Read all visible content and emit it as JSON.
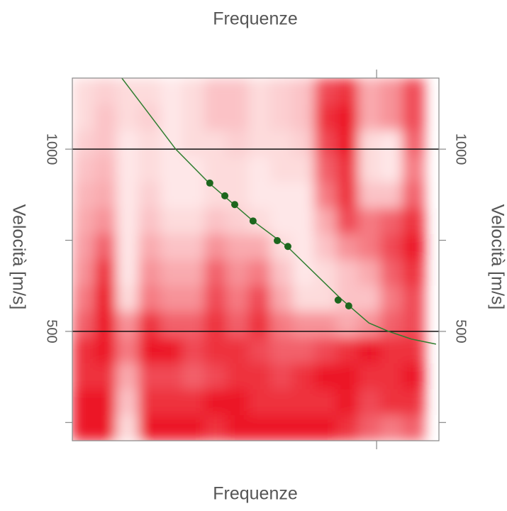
{
  "chart_data": {
    "type": "heatmap",
    "xlabel": "Frequenze",
    "ylabel": "Velocità [m/s]",
    "xlim": [
      0,
      100
    ],
    "ylim": [
      200,
      1195
    ],
    "yticks": [
      500,
      1000
    ],
    "yticks_minor": [
      250,
      750
    ],
    "xticks_minor": [
      83
    ],
    "hlines": [
      500,
      1000
    ],
    "colormap": [
      "#fff3f3",
      "#ea0010"
    ],
    "x_bins": [
      0,
      6,
      12,
      18,
      24,
      30,
      36,
      42,
      48,
      54,
      60,
      66,
      72,
      78,
      84,
      90,
      96
    ],
    "y_bins": [
      200,
      271,
      342,
      413,
      484,
      555,
      626,
      697,
      768,
      839,
      910,
      981,
      1052,
      1123,
      1195
    ],
    "z": [
      [
        0.9,
        0.9,
        0.1,
        0.9,
        0.9,
        0.9,
        0.8,
        0.9,
        0.9,
        0.9,
        0.9,
        0.9,
        0.8,
        0.6,
        0.5,
        0.6
      ],
      [
        0.9,
        0.9,
        0.2,
        0.8,
        0.8,
        0.8,
        0.9,
        0.9,
        0.8,
        0.8,
        0.8,
        0.8,
        0.9,
        0.7,
        0.8,
        0.8
      ],
      [
        0.8,
        0.8,
        0.3,
        0.7,
        0.7,
        0.6,
        0.7,
        0.8,
        0.8,
        0.7,
        0.8,
        0.9,
        0.9,
        0.8,
        0.8,
        0.9
      ],
      [
        0.8,
        0.9,
        0.5,
        0.9,
        0.9,
        0.7,
        0.8,
        0.8,
        0.7,
        0.6,
        0.6,
        0.7,
        0.8,
        0.9,
        0.8,
        0.8
      ],
      [
        0.6,
        0.9,
        0.4,
        0.8,
        0.6,
        0.6,
        0.8,
        0.6,
        0.8,
        0.5,
        0.4,
        0.4,
        0.3,
        0.4,
        0.6,
        0.7
      ],
      [
        0.5,
        0.9,
        0.1,
        0.5,
        0.4,
        0.4,
        0.7,
        0.5,
        0.7,
        0.3,
        0.1,
        0.1,
        0.2,
        0.2,
        0.5,
        0.7
      ],
      [
        0.4,
        0.8,
        0.05,
        0.4,
        0.3,
        0.3,
        0.6,
        0.4,
        0.5,
        0.2,
        0.05,
        0.1,
        0.2,
        0.3,
        0.6,
        0.8
      ],
      [
        0.35,
        0.6,
        0.05,
        0.3,
        0.2,
        0.2,
        0.4,
        0.3,
        0.3,
        0.1,
        0.05,
        0.2,
        0.4,
        0.5,
        0.7,
        0.9
      ],
      [
        0.3,
        0.4,
        0.05,
        0.2,
        0.1,
        0.1,
        0.2,
        0.15,
        0.1,
        0.05,
        0.05,
        0.3,
        0.7,
        0.5,
        0.6,
        0.8
      ],
      [
        0.25,
        0.3,
        0.05,
        0.15,
        0.05,
        0.05,
        0.1,
        0.1,
        0.05,
        0.05,
        0.05,
        0.5,
        0.8,
        0.2,
        0.2,
        0.6
      ],
      [
        0.2,
        0.25,
        0.05,
        0.1,
        0.05,
        0.05,
        0.1,
        0.1,
        0.05,
        0.1,
        0.1,
        0.6,
        0.8,
        0.1,
        0.05,
        0.5
      ],
      [
        0.15,
        0.2,
        0.05,
        0.1,
        0.05,
        0.1,
        0.1,
        0.15,
        0.1,
        0.1,
        0.15,
        0.7,
        0.9,
        0.1,
        0.05,
        0.6
      ],
      [
        0.1,
        0.2,
        0.1,
        0.15,
        0.05,
        0.1,
        0.2,
        0.2,
        0.1,
        0.15,
        0.2,
        0.8,
        0.9,
        0.3,
        0.4,
        0.7
      ],
      [
        0.1,
        0.15,
        0.1,
        0.1,
        0.05,
        0.1,
        0.2,
        0.2,
        0.1,
        0.15,
        0.2,
        0.7,
        0.8,
        0.3,
        0.4,
        0.7
      ]
    ],
    "curve": {
      "color": "#2f7d2f",
      "x": [
        13.5,
        20.9,
        28.2,
        37.3,
        49.3,
        58.6,
        73.1,
        80.9,
        86.3,
        92.5,
        99.2
      ],
      "y": [
        1195,
        1097,
        1000,
        907,
        803,
        733,
        591,
        523,
        500,
        479,
        465
      ]
    },
    "points": {
      "color": "#1d661d",
      "x": [
        37.5,
        41.6,
        44.3,
        49.3,
        55.9,
        58.8,
        72.5,
        75.4
      ],
      "y": [
        907,
        872,
        848,
        803,
        749,
        733,
        586,
        570
      ]
    }
  }
}
